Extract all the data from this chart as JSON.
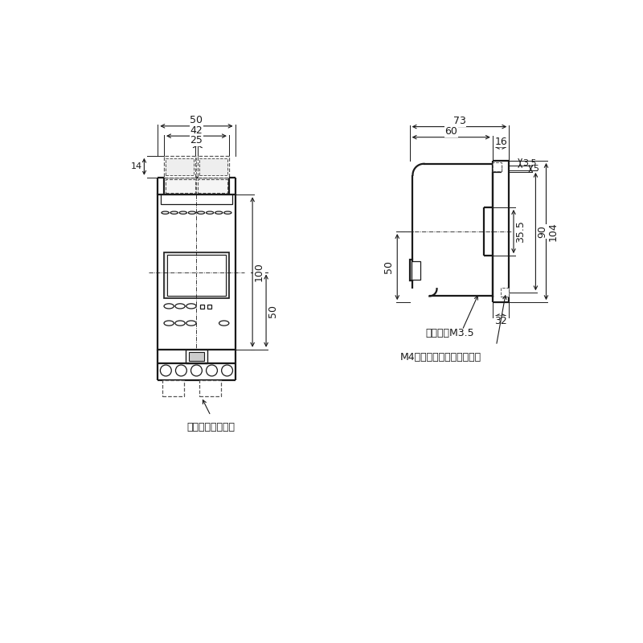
{
  "bg_color": "#ffffff",
  "lc": "#1a1a1a",
  "dc": "#555555",
  "fs": 9,
  "fs_sm": 8,
  "lw": 1.3,
  "lwt": 1.6,
  "left_label": "取付爪（付属品）",
  "right_screw": "端子ねじM3.5",
  "right_m4": "M4ねじをご使用ください。"
}
